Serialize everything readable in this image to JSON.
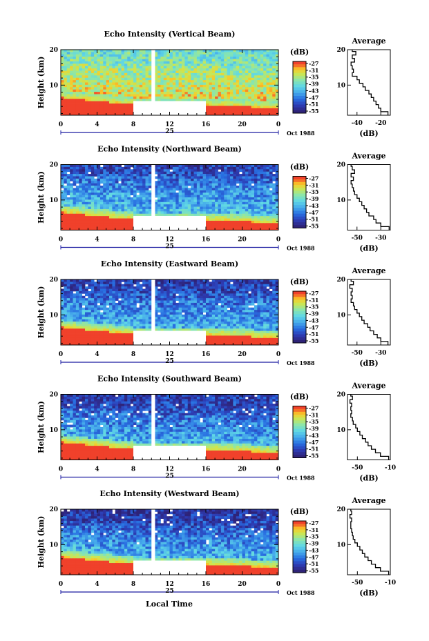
{
  "figure": {
    "xlabel": "Local Time",
    "month_label": "Oct 1988",
    "colorbar_unit": "(dB)",
    "colorbar_levels": [
      "-27",
      "-31",
      "-35",
      "-39",
      "-43",
      "-47",
      "-51",
      "-55"
    ]
  },
  "chart_data": [
    {
      "type": "heatmap",
      "title": "Echo Intensity (Vertical Beam)",
      "ylabel": "Height (km)",
      "xlabel": "Local Time",
      "x_ticks": [
        "0",
        "4",
        "8",
        "12",
        "16",
        "20",
        "0"
      ],
      "y_ticks": [
        "20",
        "10"
      ],
      "date_label": "25",
      "xlim": [
        0,
        24
      ],
      "ylim": [
        1.5,
        20
      ],
      "colorbar": {
        "label": "(dB)",
        "levels": [
          -27,
          -31,
          -35,
          -39,
          -43,
          -47,
          -51,
          -55
        ]
      },
      "gaps": [
        {
          "x": [
            10,
            10.4
          ],
          "y": [
            1.5,
            20
          ]
        },
        {
          "x": [
            8,
            16
          ],
          "y": [
            1.5,
            5.5
          ]
        }
      ],
      "average_profile": {
        "title": "Average",
        "xlabel": "(dB)",
        "ylabel": "",
        "x_ticks": [
          "-40",
          "-20"
        ],
        "xlim": [
          -48,
          -12
        ],
        "height": [
          20,
          19,
          18,
          17,
          16,
          15,
          14,
          13,
          12,
          11,
          10,
          9,
          8,
          7,
          6,
          5,
          4,
          3,
          2
        ],
        "db": [
          -44,
          -41,
          -44,
          -42,
          -45,
          -44,
          -43,
          -44,
          -40,
          -38,
          -35,
          -33,
          -30,
          -28,
          -26,
          -24,
          -22,
          -20,
          -14
        ]
      }
    },
    {
      "type": "heatmap",
      "title": "Echo Intensity (Northward Beam)",
      "ylabel": "Height (km)",
      "xlabel": "Local Time",
      "x_ticks": [
        "0",
        "4",
        "8",
        "12",
        "16",
        "20",
        "0"
      ],
      "y_ticks": [
        "20",
        "10"
      ],
      "date_label": "25",
      "xlim": [
        0,
        24
      ],
      "ylim": [
        1.5,
        20
      ],
      "colorbar": {
        "label": "(dB)",
        "levels": [
          -27,
          -31,
          -35,
          -39,
          -43,
          -47,
          -51,
          -55
        ]
      },
      "gaps": [
        {
          "x": [
            10,
            10.4
          ],
          "y": [
            1.5,
            20
          ]
        },
        {
          "x": [
            8,
            16
          ],
          "y": [
            1.5,
            5.5
          ]
        }
      ],
      "average_profile": {
        "title": "Average",
        "xlabel": "(dB)",
        "ylabel": "",
        "x_ticks": [
          "-50",
          "-30"
        ],
        "xlim": [
          -58,
          -22
        ],
        "height": [
          20,
          19,
          18,
          17,
          16,
          15,
          14,
          13,
          12,
          11,
          10,
          9,
          8,
          7,
          6,
          5,
          4,
          3,
          2
        ],
        "db": [
          -55,
          -54,
          -52,
          -55,
          -53,
          -55,
          -54,
          -53,
          -52,
          -50,
          -48,
          -46,
          -44,
          -42,
          -40,
          -36,
          -34,
          -30,
          -23
        ]
      }
    },
    {
      "type": "heatmap",
      "title": "Echo Intensity (Eastward Beam)",
      "ylabel": "Height (km)",
      "xlabel": "Local Time",
      "x_ticks": [
        "0",
        "4",
        "8",
        "12",
        "16",
        "20",
        "0"
      ],
      "y_ticks": [
        "20",
        "10"
      ],
      "date_label": "25",
      "xlim": [
        0,
        24
      ],
      "ylim": [
        1.5,
        20
      ],
      "colorbar": {
        "label": "(dB)",
        "levels": [
          -27,
          -31,
          -35,
          -39,
          -43,
          -47,
          -51,
          -55
        ]
      },
      "gaps": [
        {
          "x": [
            10,
            10.4
          ],
          "y": [
            1.5,
            20
          ]
        },
        {
          "x": [
            8,
            16
          ],
          "y": [
            1.5,
            5.5
          ]
        }
      ],
      "average_profile": {
        "title": "Average",
        "xlabel": "(dB)",
        "ylabel": "",
        "x_ticks": [
          "-50",
          "-30"
        ],
        "xlim": [
          -58,
          -22
        ],
        "height": [
          20,
          19,
          18,
          17,
          16,
          15,
          14,
          13,
          12,
          11,
          10,
          9,
          8,
          7,
          6,
          5,
          4,
          3,
          2
        ],
        "db": [
          -55,
          -53,
          -56,
          -54,
          -55,
          -54,
          -55,
          -53,
          -52,
          -50,
          -48,
          -46,
          -44,
          -41,
          -39,
          -36,
          -33,
          -30,
          -24
        ]
      }
    },
    {
      "type": "heatmap",
      "title": "Echo Intensity (Southward Beam)",
      "ylabel": "Height (km)",
      "xlabel": "Local Time",
      "x_ticks": [
        "0",
        "4",
        "8",
        "12",
        "16",
        "20",
        "0"
      ],
      "y_ticks": [
        "20",
        "10"
      ],
      "date_label": "25",
      "xlim": [
        0,
        24
      ],
      "ylim": [
        1.5,
        20
      ],
      "colorbar": {
        "label": "(dB)",
        "levels": [
          -27,
          -31,
          -35,
          -39,
          -43,
          -47,
          -51,
          -55
        ]
      },
      "gaps": [
        {
          "x": [
            10,
            10.4
          ],
          "y": [
            1.5,
            20
          ]
        },
        {
          "x": [
            8,
            16
          ],
          "y": [
            1.5,
            5.5
          ]
        }
      ],
      "average_profile": {
        "title": "Average",
        "xlabel": "(dB)",
        "ylabel": "",
        "x_ticks": [
          "-50",
          "-10"
        ],
        "xlim": [
          -62,
          -10
        ],
        "height": [
          20,
          19,
          18,
          17,
          16,
          15,
          14,
          13,
          12,
          11,
          10,
          9,
          8,
          7,
          6,
          5,
          4,
          3,
          2
        ],
        "db": [
          -58,
          -56,
          -59,
          -57,
          -58,
          -57,
          -58,
          -56,
          -55,
          -52,
          -50,
          -47,
          -44,
          -40,
          -37,
          -33,
          -28,
          -22,
          -12
        ]
      }
    },
    {
      "type": "heatmap",
      "title": "Echo Intensity (Westward Beam)",
      "ylabel": "Height (km)",
      "xlabel": "Local Time",
      "x_ticks": [
        "0",
        "4",
        "8",
        "12",
        "16",
        "20",
        "0"
      ],
      "y_ticks": [
        "20",
        "10"
      ],
      "date_label": "25",
      "xlim": [
        0,
        24
      ],
      "ylim": [
        1.5,
        20
      ],
      "colorbar": {
        "label": "(dB)",
        "levels": [
          -27,
          -31,
          -35,
          -39,
          -43,
          -47,
          -51,
          -55
        ]
      },
      "gaps": [
        {
          "x": [
            10,
            10.4
          ],
          "y": [
            1.5,
            20
          ]
        },
        {
          "x": [
            8,
            16
          ],
          "y": [
            1.5,
            5.5
          ]
        }
      ],
      "average_profile": {
        "title": "Average",
        "xlabel": "(dB)",
        "ylabel": "",
        "x_ticks": [
          "-50",
          "-10"
        ],
        "xlim": [
          -62,
          -10
        ],
        "height": [
          20,
          19,
          18,
          17,
          16,
          15,
          14,
          13,
          12,
          11,
          10,
          9,
          8,
          7,
          6,
          5,
          4,
          3,
          2
        ],
        "db": [
          -58,
          -57,
          -59,
          -57,
          -58,
          -58,
          -57,
          -56,
          -55,
          -53,
          -50,
          -47,
          -44,
          -41,
          -37,
          -33,
          -28,
          -22,
          -12
        ]
      }
    }
  ]
}
